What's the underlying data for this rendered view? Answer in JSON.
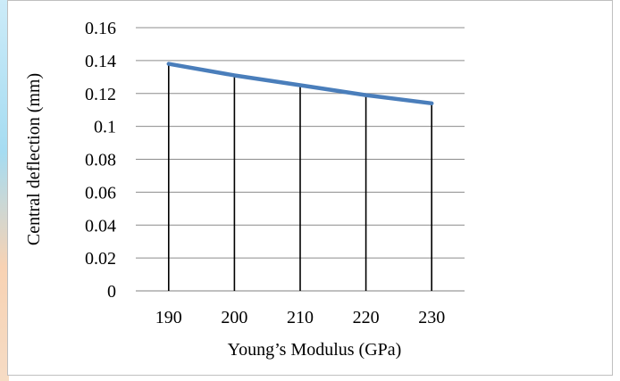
{
  "chart_data": {
    "type": "line",
    "title": "",
    "xlabel": "Young’s Modulus (GPa)",
    "ylabel": "Central deflection (mm)",
    "categories": [
      "190",
      "200",
      "210",
      "220",
      "230"
    ],
    "series": [
      {
        "values": [
          0.138,
          0.131,
          0.125,
          0.119,
          0.114
        ],
        "color": "#4a7ebb"
      }
    ],
    "yticks": [
      "0",
      "0.02",
      "0.04",
      "0.06",
      "0.08",
      "0.1",
      "0.12",
      "0.14",
      "0.16"
    ],
    "ylim": [
      0,
      0.16
    ],
    "drop_lines": true,
    "grid": "horizontal",
    "legend": "none"
  }
}
